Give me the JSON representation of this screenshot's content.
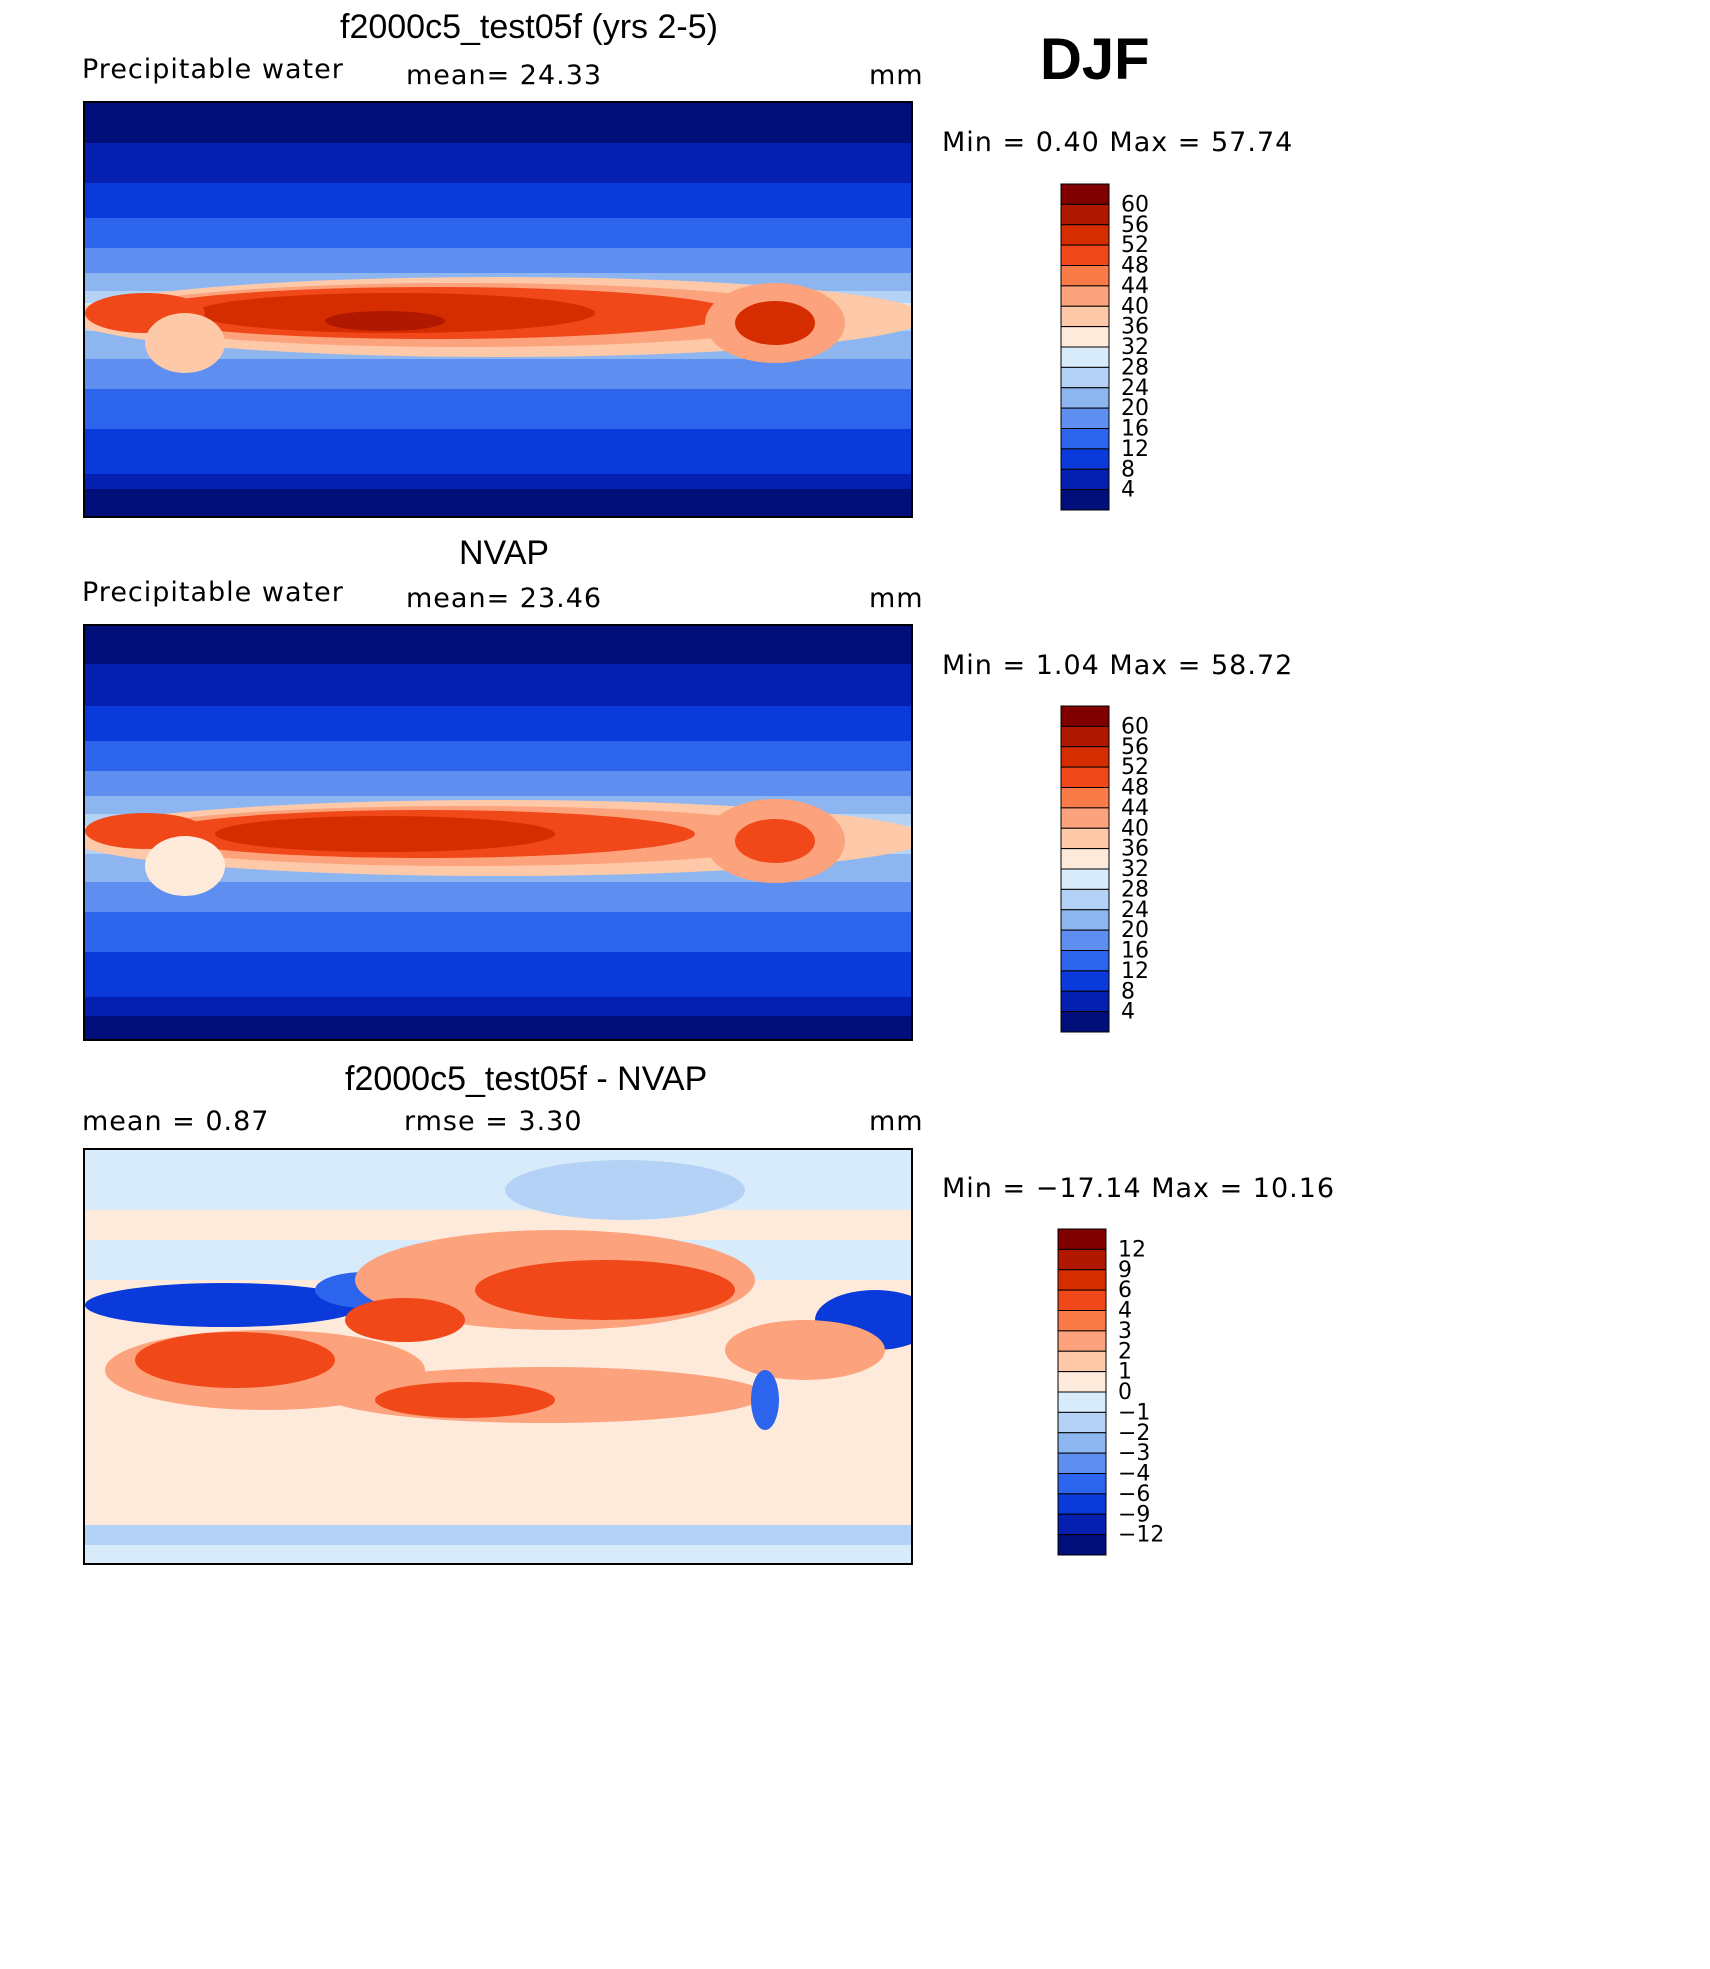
{
  "season": "DJF",
  "panels": [
    {
      "title": "f2000c5_test05f (yrs 2-5)",
      "left_label": "Precipitable  water",
      "center_label": "mean=   24.33",
      "units": "mm",
      "stats": "Min  =     0.40  Max  =    57.74",
      "colorbar": {
        "labels": [
          "60",
          "56",
          "52",
          "48",
          "44",
          "40",
          "36",
          "32",
          "28",
          "24",
          "20",
          "16",
          "12",
          "8",
          "4"
        ],
        "colors": [
          "#800000",
          "#b01800",
          "#d52d00",
          "#f04818",
          "#fa7a48",
          "#fca27c",
          "#fdc9a8",
          "#feeadb",
          "#d8ebfb",
          "#b3d2f5",
          "#8db6f1",
          "#5e8ef0",
          "#2c64ee",
          "#0a3ad9",
          "#0520b0",
          "#000f7a"
        ]
      }
    },
    {
      "title": "NVAP",
      "left_label": "Precipitable  water",
      "center_label": "mean=   23.46",
      "units": "mm",
      "stats": "Min  =     1.04  Max  =    58.72",
      "colorbar": {
        "labels": [
          "60",
          "56",
          "52",
          "48",
          "44",
          "40",
          "36",
          "32",
          "28",
          "24",
          "20",
          "16",
          "12",
          "8",
          "4"
        ],
        "colors": [
          "#800000",
          "#b01800",
          "#d52d00",
          "#f04818",
          "#fa7a48",
          "#fca27c",
          "#fdc9a8",
          "#feeadb",
          "#d8ebfb",
          "#b3d2f5",
          "#8db6f1",
          "#5e8ef0",
          "#2c64ee",
          "#0a3ad9",
          "#0520b0",
          "#000f7a"
        ]
      }
    },
    {
      "title": "f2000c5_test05f - NVAP",
      "left_label": "mean  =      0.87",
      "center_label": "rmse  =      3.30",
      "units": "mm",
      "stats": "Min  = −17.14  Max  =    10.16",
      "colorbar": {
        "labels": [
          "12",
          "9",
          "6",
          "4",
          "3",
          "2",
          "1",
          "0",
          "−1",
          "−2",
          "−3",
          "−4",
          "−6",
          "−9",
          "−12"
        ],
        "colors": [
          "#800000",
          "#b01800",
          "#d52d00",
          "#f04818",
          "#fa7a48",
          "#fca27c",
          "#fdc9a8",
          "#feeadb",
          "#d8ebfb",
          "#b3d2f5",
          "#8db6f1",
          "#5e8ef0",
          "#2c64ee",
          "#0a3ad9",
          "#0520b0",
          "#000f7a"
        ]
      }
    }
  ],
  "chart_data": [
    {
      "type": "heatmap",
      "title": "f2000c5_test05f (yrs 2-5)",
      "variable": "Precipitable water",
      "units": "mm",
      "mean": 24.33,
      "min": 0.4,
      "max": 57.74,
      "contour_levels": [
        4,
        8,
        12,
        16,
        20,
        24,
        28,
        32,
        36,
        40,
        44,
        48,
        52,
        56,
        60
      ],
      "projection": "cylindrical equidistant, Pacific-centered",
      "pattern": "maximum in tropical warm pool and ITCZ, minimum at high latitudes"
    },
    {
      "type": "heatmap",
      "title": "NVAP",
      "variable": "Precipitable water",
      "units": "mm",
      "mean": 23.46,
      "min": 1.04,
      "max": 58.72,
      "contour_levels": [
        4,
        8,
        12,
        16,
        20,
        24,
        28,
        32,
        36,
        40,
        44,
        48,
        52,
        56,
        60
      ],
      "projection": "cylindrical equidistant, Pacific-centered"
    },
    {
      "type": "heatmap",
      "title": "f2000c5_test05f - NVAP",
      "units": "mm",
      "mean": 0.87,
      "rmse": 3.3,
      "min": -17.14,
      "max": 10.16,
      "contour_levels": [
        -12,
        -9,
        -6,
        -4,
        -3,
        -2,
        -1,
        0,
        1,
        2,
        3,
        4,
        6,
        9,
        12
      ],
      "projection": "cylindrical equidistant, Pacific-centered"
    }
  ]
}
